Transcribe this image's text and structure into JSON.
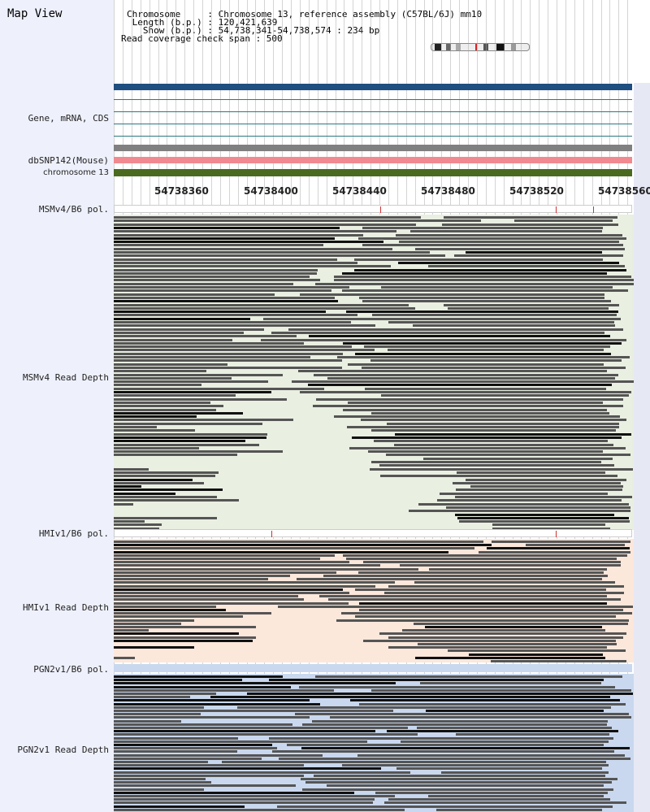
{
  "title": "Map View",
  "info": {
    "chromosome": "Chromosome     : Chromosome 13, reference assembly (C57BL/6J) mm10",
    "length": " Length (b.p.) : 120,421,639",
    "show": "   Show (b.p.) : 54,738,341-54,738,574 : 234 bp",
    "coverage": "Read coverage check span : 500"
  },
  "labels": {
    "gene": "Gene, mRNA, CDS",
    "dbsnp": "dbSNP142(Mouse)",
    "chromosome": "chromosome 13",
    "msm_pol": "MSMv4/B6 pol.",
    "msm_depth": "MSMv4 Read Depth",
    "hmi_pol": "HMIv1/B6 pol.",
    "hmi_depth": "HMIv1 Read Depth",
    "pgn_pol": "PGN2v1/B6 pol.",
    "pgn_depth": "PGN2v1 Read Depth"
  },
  "axis": {
    "ticks": [
      "54738360",
      "54738400",
      "54738440",
      "54738480",
      "54738520",
      "54738560"
    ]
  },
  "colors": {
    "gene_bar": "#1f4e80",
    "dbsnp_bar": "#f08a90",
    "chromosome_bar": "#4a6a20",
    "msm_bg": "#e9efe1",
    "hmi_bg": "#fce7db",
    "pgn_bg": "#c9d8ee",
    "read": "#555555",
    "snp_mark": "#d03030"
  }
}
